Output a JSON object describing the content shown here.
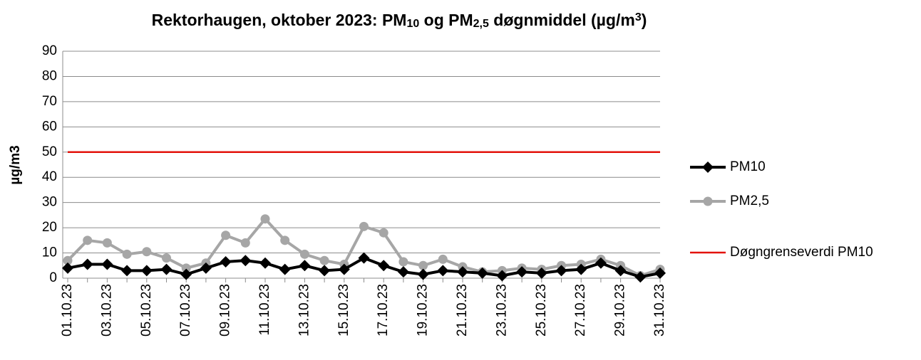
{
  "chart_data": {
    "type": "line",
    "title": [
      {
        "text": "Rektorhaugen, oktober 2023: PM"
      },
      {
        "text": "10",
        "baseline": "sub"
      },
      {
        "text": " og PM"
      },
      {
        "text": "2,5",
        "baseline": "sub"
      },
      {
        "text": " døgnmiddel (µg/m"
      },
      {
        "text": "3",
        "baseline": "super"
      },
      {
        "text": ")"
      }
    ],
    "y_label": "µg/m3",
    "categories": [
      "01.10.23",
      null,
      "03.10.23",
      null,
      "05.10.23",
      null,
      "07.10.23",
      null,
      "09.10.23",
      null,
      "11.10.23",
      null,
      "13.10.23",
      null,
      "15.10.23",
      null,
      "17.10.23",
      null,
      "19.10.23",
      null,
      "21.10.23",
      null,
      "23.10.23",
      null,
      "25.10.23",
      null,
      "27.10.23",
      null,
      "29.10.23",
      null,
      "31.10.23"
    ],
    "series": [
      {
        "name": "PM10",
        "color": "#000000",
        "marker": "diamond",
        "values": [
          4,
          5.5,
          5.5,
          3,
          3,
          3.5,
          1.5,
          4,
          6.5,
          7,
          6,
          3.5,
          5,
          3,
          3.5,
          8,
          5,
          2.5,
          1.5,
          3,
          2.5,
          2,
          1,
          2.5,
          2,
          3,
          3.5,
          6,
          3,
          0.5,
          2
        ]
      },
      {
        "name": "PM2,5",
        "color": "#a6a6a6",
        "marker": "circle",
        "values": [
          7,
          15,
          14,
          9.5,
          10.5,
          8,
          4,
          6,
          17,
          14,
          23.5,
          15,
          9.5,
          7,
          5.5,
          20.5,
          18,
          6.5,
          5,
          7.5,
          4.5,
          2.5,
          3,
          4,
          3.5,
          5,
          5.5,
          7.5,
          5,
          1,
          3.5
        ]
      },
      {
        "name": "Døgngrenseverdi PM10",
        "color": "#e3120b",
        "marker": null,
        "values": [
          50,
          50,
          50,
          50,
          50,
          50,
          50,
          50,
          50,
          50,
          50,
          50,
          50,
          50,
          50,
          50,
          50,
          50,
          50,
          50,
          50,
          50,
          50,
          50,
          50,
          50,
          50,
          50,
          50,
          50,
          50
        ]
      }
    ],
    "ylim": [
      0,
      90
    ],
    "yticks": [
      0,
      10,
      20,
      30,
      40,
      50,
      60,
      70,
      80,
      90
    ],
    "grid": true,
    "legend": "right"
  }
}
